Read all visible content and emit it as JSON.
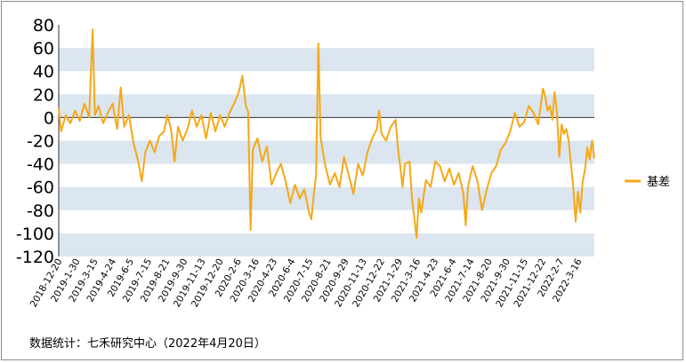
{
  "chart_data": {
    "type": "line",
    "ylim": [
      -120,
      80
    ],
    "yticks": [
      80,
      60,
      40,
      20,
      0,
      -20,
      -40,
      -60,
      -80,
      -100,
      -120
    ],
    "bands": [
      [
        40,
        60
      ],
      [
        0,
        20
      ],
      [
        -40,
        -20
      ],
      [
        -80,
        -60
      ],
      [
        -120,
        -100
      ]
    ],
    "xticks": [
      "2018-12-20",
      "2019-1-30",
      "2019-3-15",
      "2019-4-24",
      "2019-6-5",
      "2019-7-15",
      "2019-8-21",
      "2019-9-30",
      "2019-11-13",
      "2019-12-20",
      "2020-2-6",
      "2020-3-16",
      "2020-4-23",
      "2020-6-4",
      "2020-7-15",
      "2020-8-21",
      "2020-9-29",
      "2020-11-13",
      "2020-12-22",
      "2021-1-29",
      "2021-3-16",
      "2021-4-23",
      "2021-6-4",
      "2021-7-14",
      "2021-8-20",
      "2021-9-30",
      "2021-11-15",
      "2021-12-22",
      "2022-2-7",
      "2022-3-16"
    ],
    "legend_position": "right",
    "grid": false,
    "series": [
      {
        "name": "基差",
        "color": "#F5A816",
        "values": [
          [
            0,
            8
          ],
          [
            1,
            -12
          ],
          [
            3,
            2
          ],
          [
            5,
            -5
          ],
          [
            7,
            6
          ],
          [
            9,
            -3
          ],
          [
            11,
            12
          ],
          [
            13,
            0
          ],
          [
            14.5,
            76
          ],
          [
            15.5,
            2
          ],
          [
            17,
            10
          ],
          [
            19,
            -5
          ],
          [
            21,
            4
          ],
          [
            23,
            12
          ],
          [
            25,
            -10
          ],
          [
            26.5,
            26
          ],
          [
            28,
            -8
          ],
          [
            30,
            2
          ],
          [
            32,
            -22
          ],
          [
            34,
            -38
          ],
          [
            35.5,
            -55
          ],
          [
            37,
            -30
          ],
          [
            39,
            -20
          ],
          [
            41,
            -30
          ],
          [
            43,
            -16
          ],
          [
            45,
            -12
          ],
          [
            46.5,
            2
          ],
          [
            48,
            -10
          ],
          [
            49.5,
            -38
          ],
          [
            51,
            -8
          ],
          [
            53,
            -20
          ],
          [
            55,
            -10
          ],
          [
            57,
            6
          ],
          [
            59,
            -8
          ],
          [
            61,
            2
          ],
          [
            63,
            -18
          ],
          [
            65,
            4
          ],
          [
            67,
            -12
          ],
          [
            69,
            2
          ],
          [
            71,
            -8
          ],
          [
            73,
            4
          ],
          [
            75,
            12
          ],
          [
            77,
            22
          ],
          [
            78.5,
            36
          ],
          [
            80,
            10
          ],
          [
            81,
            5
          ],
          [
            82,
            -97
          ],
          [
            83,
            -28
          ],
          [
            85,
            -18
          ],
          [
            87,
            -38
          ],
          [
            89,
            -25
          ],
          [
            91,
            -58
          ],
          [
            93,
            -48
          ],
          [
            95,
            -40
          ],
          [
            97,
            -55
          ],
          [
            99,
            -74
          ],
          [
            101,
            -58
          ],
          [
            103,
            -70
          ],
          [
            105,
            -62
          ],
          [
            107,
            -82
          ],
          [
            108,
            -88
          ],
          [
            109,
            -68
          ],
          [
            110,
            -50
          ],
          [
            111,
            64
          ],
          [
            112,
            -18
          ],
          [
            114,
            -42
          ],
          [
            116,
            -58
          ],
          [
            118,
            -48
          ],
          [
            120,
            -60
          ],
          [
            122,
            -34
          ],
          [
            124,
            -50
          ],
          [
            126,
            -66
          ],
          [
            128,
            -40
          ],
          [
            130,
            -50
          ],
          [
            132,
            -30
          ],
          [
            134,
            -18
          ],
          [
            136,
            -10
          ],
          [
            137,
            6
          ],
          [
            138,
            -14
          ],
          [
            140,
            -20
          ],
          [
            142,
            -8
          ],
          [
            144,
            -2
          ],
          [
            145,
            -26
          ],
          [
            146,
            -42
          ],
          [
            147,
            -60
          ],
          [
            148,
            -40
          ],
          [
            150,
            -38
          ],
          [
            151,
            -70
          ],
          [
            152,
            -86
          ],
          [
            153,
            -104
          ],
          [
            154,
            -70
          ],
          [
            155,
            -82
          ],
          [
            157,
            -54
          ],
          [
            159,
            -60
          ],
          [
            161,
            -38
          ],
          [
            163,
            -42
          ],
          [
            165,
            -55
          ],
          [
            167,
            -44
          ],
          [
            169,
            -58
          ],
          [
            171,
            -48
          ],
          [
            173,
            -66
          ],
          [
            174,
            -93
          ],
          [
            175,
            -60
          ],
          [
            176,
            -50
          ],
          [
            177,
            -42
          ],
          [
            179,
            -55
          ],
          [
            181,
            -80
          ],
          [
            183,
            -62
          ],
          [
            185,
            -48
          ],
          [
            187,
            -42
          ],
          [
            189,
            -28
          ],
          [
            191,
            -22
          ],
          [
            193,
            -12
          ],
          [
            195,
            4
          ],
          [
            197,
            -8
          ],
          [
            199,
            -4
          ],
          [
            201,
            10
          ],
          [
            203,
            4
          ],
          [
            205,
            -6
          ],
          [
            207,
            25
          ],
          [
            208,
            18
          ],
          [
            209,
            6
          ],
          [
            210,
            10
          ],
          [
            211,
            -2
          ],
          [
            212,
            22
          ],
          [
            213,
            5
          ],
          [
            214,
            -34
          ],
          [
            215,
            -6
          ],
          [
            216,
            -14
          ],
          [
            217,
            -10
          ],
          [
            218,
            -20
          ],
          [
            219,
            -40
          ],
          [
            220,
            -60
          ],
          [
            221,
            -90
          ],
          [
            222,
            -64
          ],
          [
            223,
            -82
          ],
          [
            224,
            -55
          ],
          [
            225,
            -45
          ],
          [
            226,
            -26
          ],
          [
            227,
            -36
          ],
          [
            228,
            -20
          ],
          [
            229,
            -35
          ]
        ]
      }
    ]
  },
  "legend": {
    "label": "基差"
  },
  "source_text": "数据统计：七禾研究中心（2022年4月20日）"
}
